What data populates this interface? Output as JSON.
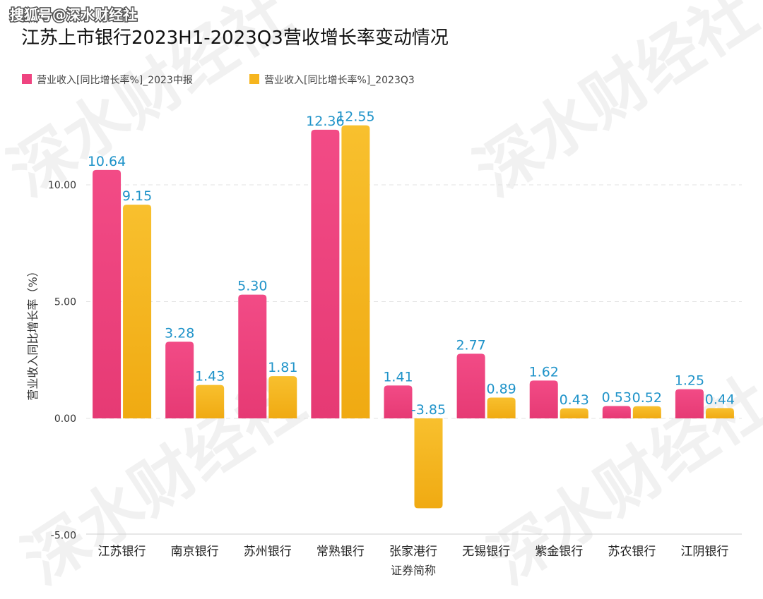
{
  "header": {
    "source_watermark": "搜狐号@深水财经社",
    "background_watermark": "深水财经社"
  },
  "colors": {
    "series_1": "#ef4480",
    "series_2": "#f6b51e",
    "data_label": "#1f93c9",
    "grid": "#e3e3e3"
  },
  "chart_data": {
    "type": "bar",
    "title": "江苏上市银行2023H1-2023Q3营收增长率变动情况",
    "xlabel": "证券简称",
    "ylabel": "营业收入同比增长率（%）",
    "ylim": [
      -5,
      13
    ],
    "yticks": [
      {
        "value": -5,
        "label": "-5.00"
      },
      {
        "value": 0,
        "label": "0.00"
      },
      {
        "value": 5,
        "label": "5.00"
      },
      {
        "value": 10,
        "label": "10.00"
      }
    ],
    "grid": true,
    "legend_position": "top-left",
    "categories": [
      "江苏银行",
      "南京银行",
      "苏州银行",
      "常熟银行",
      "张家港行",
      "无锡银行",
      "紫金银行",
      "苏农银行",
      "江阴银行"
    ],
    "series": [
      {
        "name": "营业收入[同比增长率%]_2023中报",
        "color": "#ef4480",
        "values": [
          10.64,
          3.28,
          5.3,
          12.36,
          1.41,
          2.77,
          1.62,
          0.53,
          1.25
        ],
        "labels": [
          "10.64",
          "3.28",
          "5.30",
          "12.36",
          "1.41",
          "2.77",
          "1.62",
          "0.53",
          "1.25"
        ]
      },
      {
        "name": "营业收入[同比增长率%]_2023Q3",
        "color": "#f6b51e",
        "values": [
          9.15,
          1.43,
          1.81,
          12.55,
          -3.85,
          0.89,
          0.43,
          0.52,
          0.44
        ],
        "labels": [
          "9.15",
          "1.43",
          "1.81",
          "12.55",
          "-3.85",
          "0.89",
          "0.43",
          "0.52",
          "0.44"
        ]
      }
    ]
  }
}
